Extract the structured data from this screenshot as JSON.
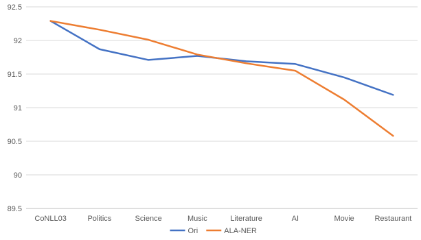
{
  "chart_data": {
    "type": "line",
    "title": "",
    "xlabel": "",
    "ylabel": "",
    "categories": [
      "CoNLL03",
      "Politics",
      "Science",
      "Music",
      "Literature",
      "AI",
      "Movie",
      "Restaurant"
    ],
    "ylim": [
      89.5,
      92.5
    ],
    "yticks": [
      "89.5",
      "90",
      "90.5",
      "91",
      "91.5",
      "92",
      "92.5"
    ],
    "grid": "horizontal",
    "legend_position": "bottom",
    "series": [
      {
        "name": "Ori",
        "color": "#4472C4",
        "values": [
          92.29,
          91.87,
          91.71,
          91.77,
          91.69,
          91.65,
          91.45,
          91.19
        ]
      },
      {
        "name": "ALA-NER",
        "color": "#ED7D31",
        "values": [
          92.29,
          92.16,
          92.01,
          91.79,
          91.66,
          91.55,
          91.12,
          90.58
        ]
      }
    ]
  }
}
